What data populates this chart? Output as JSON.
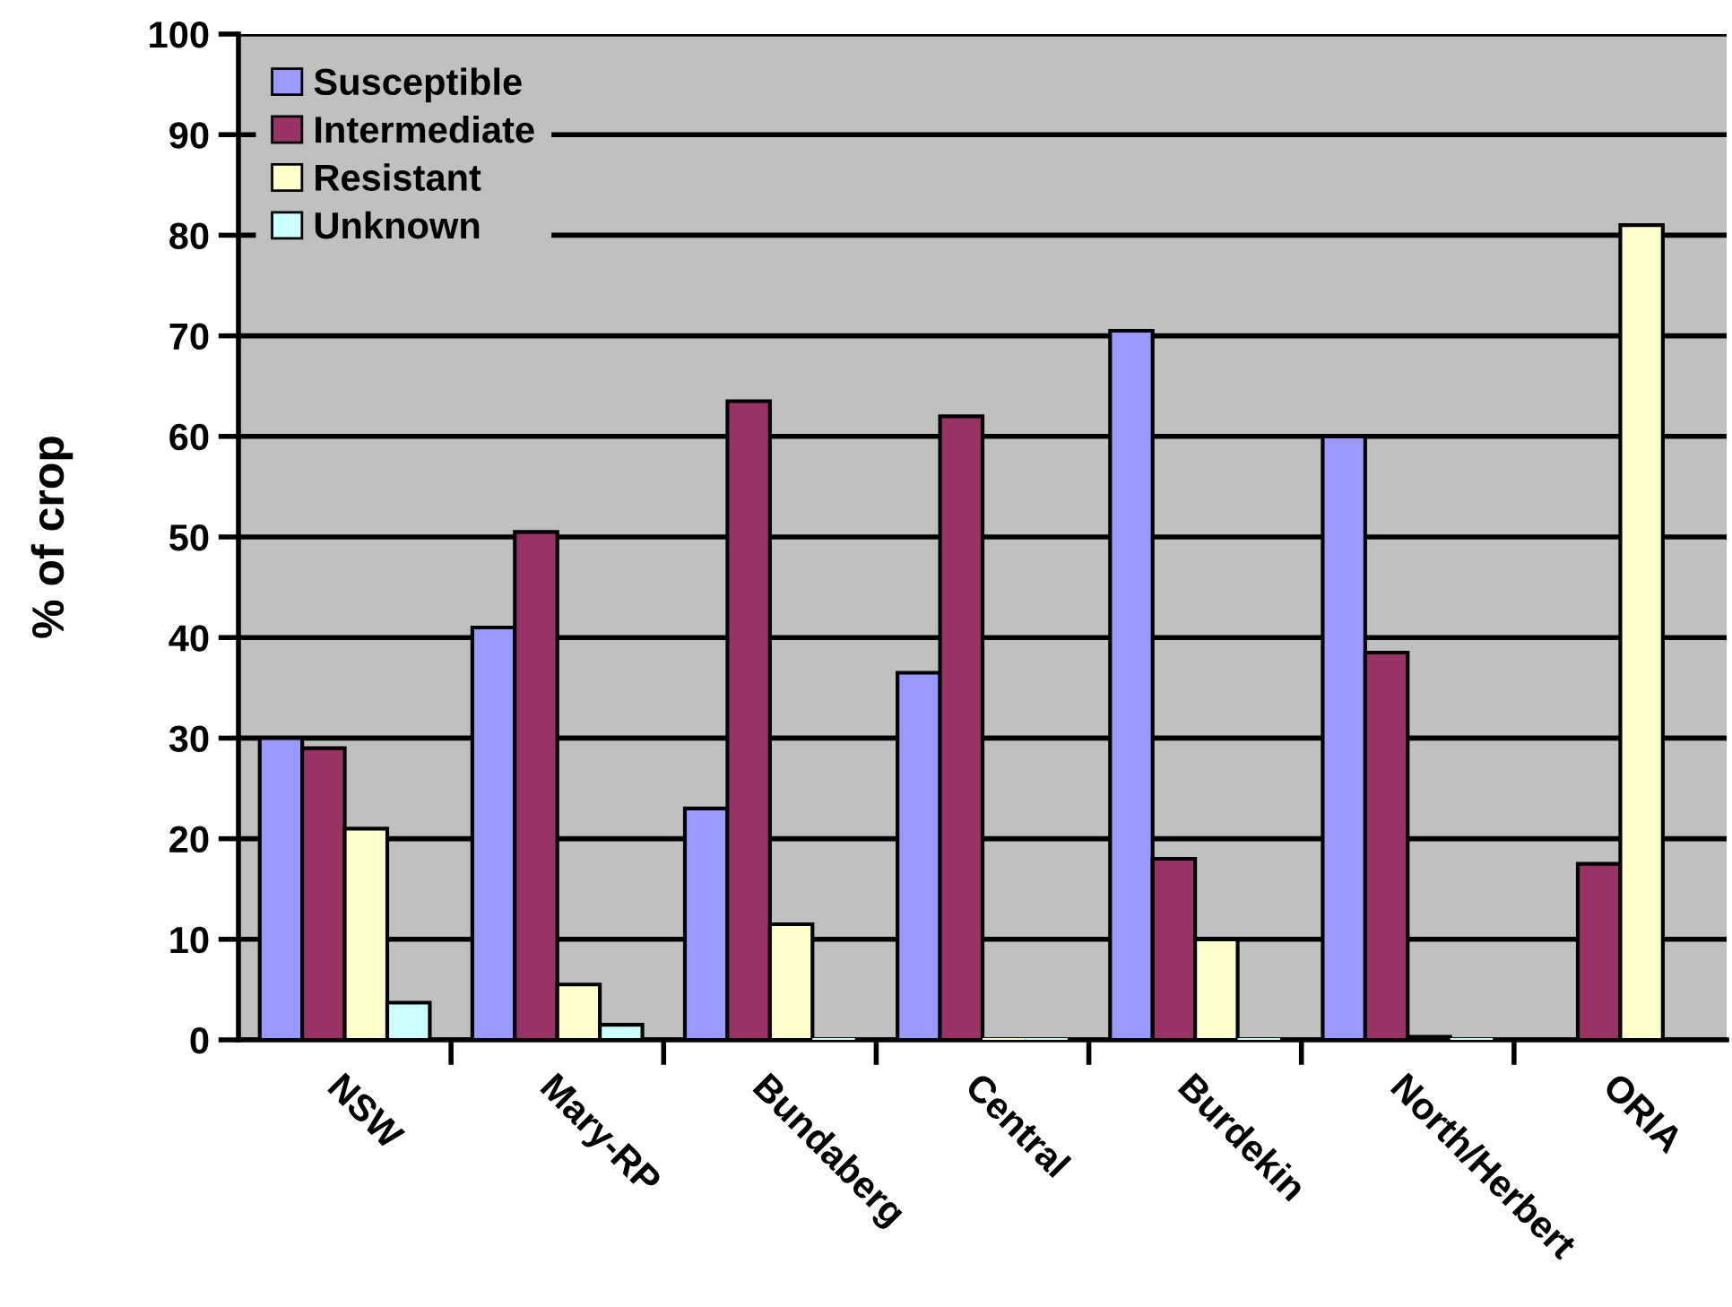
{
  "chart_data": {
    "type": "bar",
    "ylabel": "% of crop",
    "categories": [
      "NSW",
      "Mary-RP",
      "Bundaberg",
      "Central",
      "Burdekin",
      "North/Herbert",
      "ORIA"
    ],
    "series": [
      {
        "name": "Susceptible",
        "color": "#9999ff",
        "values": [
          30,
          41,
          23,
          36.5,
          70.5,
          60,
          null
        ]
      },
      {
        "name": "Intermediate",
        "color": "#993366",
        "values": [
          29,
          50.5,
          63.5,
          62,
          18,
          38.5,
          17.5
        ]
      },
      {
        "name": "Resistant",
        "color": "#ffffcc",
        "values": [
          21,
          5.5,
          11.5,
          0,
          10,
          0.3,
          81
        ]
      },
      {
        "name": "Unknown",
        "color": "#ccffff",
        "values": [
          3.7,
          1.5,
          0,
          0,
          0,
          0,
          null
        ]
      }
    ],
    "ylim": [
      0,
      100
    ],
    "yticks": [
      0,
      10,
      20,
      30,
      40,
      50,
      60,
      70,
      80,
      90,
      100
    ],
    "grid": "y",
    "legend": "top left"
  }
}
